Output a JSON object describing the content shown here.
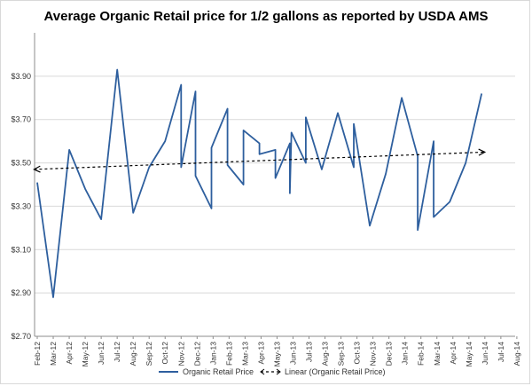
{
  "chart_data": {
    "type": "line",
    "title": "Average Organic Retail price for 1/2 gallons as reported by USDA AMS",
    "xlabel": "",
    "ylabel": "",
    "ylim": [
      2.7,
      4.1
    ],
    "y_ticks": [
      "$2.70",
      "$2.90",
      "$3.10",
      "$3.30",
      "$3.50",
      "$3.70",
      "$3.90"
    ],
    "y_tick_values": [
      2.7,
      2.9,
      3.1,
      3.3,
      3.5,
      3.7,
      3.9
    ],
    "categories": [
      "Feb-12",
      "Mar-12",
      "Apr-12",
      "May-12",
      "Jun-12",
      "Jul-12",
      "Aug-12",
      "Sep-12",
      "Oct-12",
      "Nov-12",
      "Dec-12",
      "Jan-13",
      "Feb-13",
      "Mar-13",
      "Apr-13",
      "May-13",
      "Jun-13",
      "Jul-13",
      "Aug-13",
      "Sep-13",
      "Oct-13",
      "Nov-13",
      "Dec-13",
      "Jan-14",
      "Feb-14",
      "Mar-14",
      "Apr-14",
      "May-14",
      "Jun-14",
      "Jul-14",
      "Aug-14"
    ],
    "grid": "horizontal",
    "legend_position": "bottom",
    "series": [
      {
        "name": "Organic Retail Price",
        "color": "#2e5f9e",
        "style": "solid",
        "points": [
          [
            0.0,
            3.41
          ],
          [
            1.0,
            2.88
          ],
          [
            2.0,
            3.56
          ],
          [
            3.0,
            3.38
          ],
          [
            4.0,
            3.24
          ],
          [
            5.0,
            3.93
          ],
          [
            6.0,
            3.27
          ],
          [
            7.0,
            3.48
          ],
          [
            8.0,
            3.6
          ],
          [
            9.0,
            3.86
          ],
          [
            9.0,
            3.48
          ],
          [
            9.9,
            3.83
          ],
          [
            9.9,
            3.44
          ],
          [
            10.9,
            3.29
          ],
          [
            10.9,
            3.57
          ],
          [
            11.9,
            3.75
          ],
          [
            11.9,
            3.49
          ],
          [
            12.9,
            3.4
          ],
          [
            12.9,
            3.65
          ],
          [
            13.9,
            3.59
          ],
          [
            13.9,
            3.54
          ],
          [
            14.9,
            3.56
          ],
          [
            14.9,
            3.43
          ],
          [
            15.8,
            3.59
          ],
          [
            15.8,
            3.36
          ],
          [
            15.9,
            3.64
          ],
          [
            16.8,
            3.5
          ],
          [
            16.8,
            3.71
          ],
          [
            17.8,
            3.47
          ],
          [
            18.8,
            3.73
          ],
          [
            19.8,
            3.48
          ],
          [
            19.8,
            3.68
          ],
          [
            20.8,
            3.21
          ],
          [
            21.8,
            3.45
          ],
          [
            22.8,
            3.8
          ],
          [
            23.8,
            3.53
          ],
          [
            23.8,
            3.19
          ],
          [
            24.8,
            3.6
          ],
          [
            24.8,
            3.25
          ],
          [
            25.8,
            3.32
          ],
          [
            26.8,
            3.5
          ],
          [
            27.8,
            3.82
          ]
        ]
      },
      {
        "name": "Linear (Organic Retail Price)",
        "color": "#000000",
        "style": "dashed",
        "points": [
          [
            -0.2,
            3.47
          ],
          [
            28.0,
            3.55
          ]
        ]
      }
    ]
  }
}
